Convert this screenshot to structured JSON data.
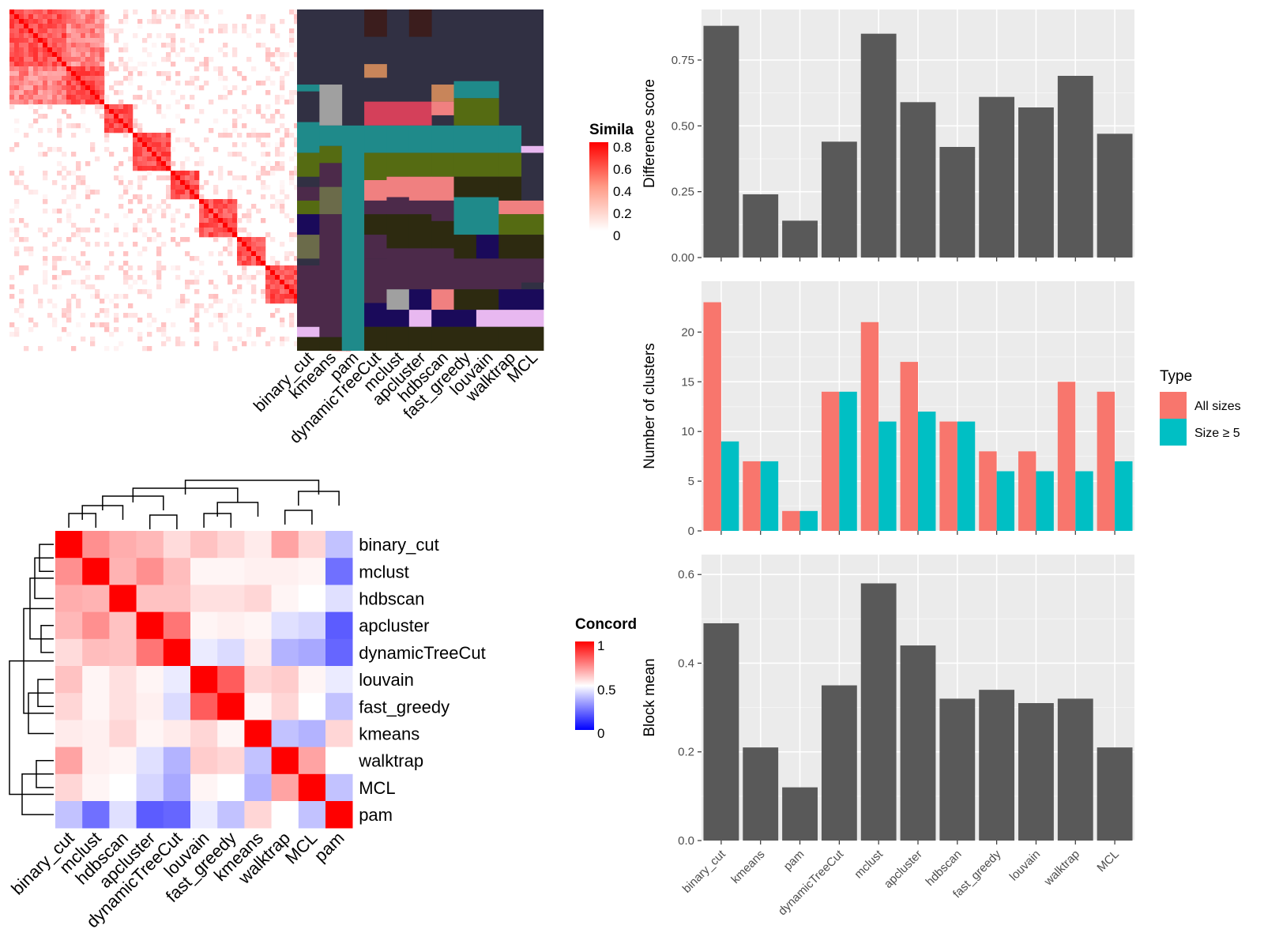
{
  "similarity_legend": {
    "title": "Simila",
    "ticks": [
      "0.8",
      "0.6",
      "0.4",
      "0.2",
      "0"
    ],
    "high_color": "#ff0000",
    "low_color": "#ffffff"
  },
  "concordance_legend": {
    "title": "Concord",
    "ticks": [
      "1",
      "0.5",
      "0"
    ],
    "high_color": "#ff0000",
    "mid_color": "#ffffff",
    "low_color": "#0000ff"
  },
  "methods": [
    "binary_cut",
    "kmeans",
    "pam",
    "dynamicTreeCut",
    "mclust",
    "apcluster",
    "hdbscan",
    "fast_greedy",
    "louvain",
    "walktrap",
    "MCL"
  ],
  "bar_x_labels": [
    "binary_cut",
    "kmeans",
    "pam",
    "dynamicTreeCut",
    "mclust",
    "apcluster",
    "hdbscan",
    "fast_greedy",
    "louvain",
    "walktrap",
    "MCL"
  ],
  "concordance_order": [
    "binary_cut",
    "mclust",
    "hdbscan",
    "apcluster",
    "dynamicTreeCut",
    "louvain",
    "fast_greedy",
    "kmeans",
    "walktrap",
    "MCL",
    "pam"
  ],
  "type_legend": {
    "title": "Type",
    "items": [
      {
        "label": "All sizes",
        "color": "#f8766d"
      },
      {
        "label": "Size ≥ 5",
        "color": "#00bfc4"
      }
    ]
  },
  "colors": {
    "bar_dark": "#595959",
    "panel_bg": "#ebebeb",
    "grid": "#ffffff"
  },
  "chart_data": [
    {
      "type": "bar",
      "ylabel": "Difference score",
      "ylim": [
        0,
        0.9
      ],
      "yticks": [
        "0.00",
        "0.25",
        "0.50",
        "0.75"
      ],
      "ytick_values": [
        0,
        0.25,
        0.5,
        0.75
      ],
      "categories": [
        "binary_cut",
        "kmeans",
        "pam",
        "dynamicTreeCut",
        "mclust",
        "apcluster",
        "hdbscan",
        "fast_greedy",
        "louvain",
        "walktrap",
        "MCL"
      ],
      "values": [
        0.88,
        0.24,
        0.14,
        0.44,
        0.85,
        0.59,
        0.42,
        0.61,
        0.57,
        0.69,
        0.47
      ]
    },
    {
      "type": "bar",
      "ylabel": "Number of clusters",
      "ylim": [
        0,
        24
      ],
      "yticks": [
        "0",
        "5",
        "10",
        "15",
        "20"
      ],
      "ytick_values": [
        0,
        5,
        10,
        15,
        20
      ],
      "categories": [
        "binary_cut",
        "kmeans",
        "pam",
        "dynamicTreeCut",
        "mclust",
        "apcluster",
        "hdbscan",
        "fast_greedy",
        "louvain",
        "walktrap",
        "MCL"
      ],
      "series": [
        {
          "name": "All sizes",
          "values": [
            23,
            7,
            2,
            14,
            21,
            17,
            11,
            8,
            8,
            15,
            14
          ]
        },
        {
          "name": "Size ≥ 5",
          "values": [
            9,
            7,
            2,
            14,
            11,
            12,
            11,
            6,
            6,
            6,
            7
          ]
        }
      ]
    },
    {
      "type": "bar",
      "ylabel": "Block mean",
      "ylim": [
        0,
        0.62
      ],
      "yticks": [
        "0.0",
        "0.2",
        "0.4",
        "0.6"
      ],
      "ytick_values": [
        0,
        0.2,
        0.4,
        0.6
      ],
      "categories": [
        "binary_cut",
        "kmeans",
        "pam",
        "dynamicTreeCut",
        "mclust",
        "apcluster",
        "hdbscan",
        "fast_greedy",
        "louvain",
        "walktrap",
        "MCL"
      ],
      "values": [
        0.49,
        0.21,
        0.12,
        0.35,
        0.58,
        0.44,
        0.32,
        0.34,
        0.31,
        0.32,
        0.21
      ]
    },
    {
      "type": "heatmap",
      "title": "Concord",
      "rows": [
        "binary_cut",
        "mclust",
        "hdbscan",
        "apcluster",
        "dynamicTreeCut",
        "louvain",
        "fast_greedy",
        "kmeans",
        "walktrap",
        "MCL",
        "pam"
      ],
      "columns": [
        "binary_cut",
        "mclust",
        "hdbscan",
        "apcluster",
        "dynamicTreeCut",
        "louvain",
        "fast_greedy",
        "kmeans",
        "walktrap",
        "MCL",
        "pam"
      ],
      "values": [
        [
          1,
          0.72,
          0.66,
          0.64,
          0.57,
          0.62,
          0.58,
          0.54,
          0.68,
          0.58,
          0.38
        ],
        [
          0.72,
          1,
          0.65,
          0.72,
          0.63,
          0.52,
          0.52,
          0.53,
          0.53,
          0.52,
          0.22
        ],
        [
          0.66,
          0.65,
          1,
          0.62,
          0.62,
          0.56,
          0.56,
          0.58,
          0.52,
          0.5,
          0.44
        ],
        [
          0.64,
          0.72,
          0.62,
          1,
          0.77,
          0.52,
          0.53,
          0.52,
          0.44,
          0.42,
          0.18
        ],
        [
          0.57,
          0.63,
          0.62,
          0.77,
          1,
          0.46,
          0.43,
          0.54,
          0.35,
          0.33,
          0.2
        ],
        [
          0.62,
          0.52,
          0.56,
          0.52,
          0.46,
          1,
          0.82,
          0.58,
          0.6,
          0.52,
          0.46
        ],
        [
          0.58,
          0.52,
          0.56,
          0.53,
          0.43,
          0.82,
          1,
          0.52,
          0.58,
          0.5,
          0.38
        ],
        [
          0.54,
          0.53,
          0.58,
          0.52,
          0.54,
          0.58,
          0.52,
          1,
          0.38,
          0.35,
          0.58
        ],
        [
          0.68,
          0.53,
          0.52,
          0.44,
          0.35,
          0.6,
          0.58,
          0.38,
          1,
          0.68,
          0.5
        ],
        [
          0.58,
          0.52,
          0.5,
          0.42,
          0.33,
          0.52,
          0.5,
          0.35,
          0.68,
          1,
          0.38
        ],
        [
          0.38,
          0.22,
          0.44,
          0.18,
          0.2,
          0.46,
          0.38,
          0.58,
          0.5,
          0.38,
          1
        ]
      ]
    }
  ]
}
